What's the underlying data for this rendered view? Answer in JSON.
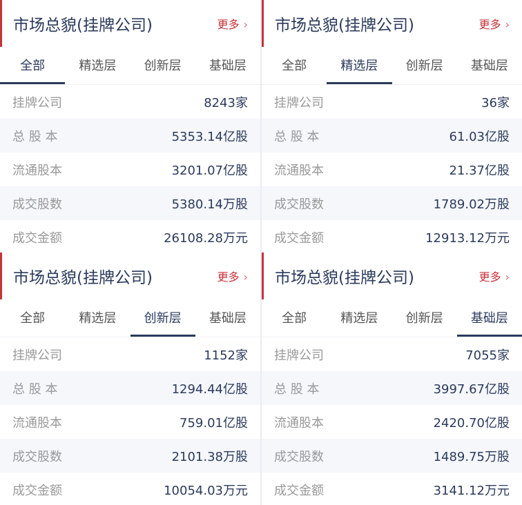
{
  "accent": "#c8323a",
  "panels": [
    {
      "title": "市场总貌(挂牌公司)",
      "more": "更多",
      "tabs": [
        "全部",
        "精选层",
        "创新层",
        "基础层"
      ],
      "active": 0,
      "rows": [
        [
          "挂牌公司",
          "8243家"
        ],
        [
          "总 股 本",
          "5353.14亿股"
        ],
        [
          "流通股本",
          "3201.07亿股"
        ],
        [
          "成交股数",
          "5380.14万股"
        ],
        [
          "成交金额",
          "26108.28万元"
        ]
      ]
    },
    {
      "title": "市场总貌(挂牌公司)",
      "more": "更多",
      "tabs": [
        "全部",
        "精选层",
        "创新层",
        "基础层"
      ],
      "active": 1,
      "rows": [
        [
          "挂牌公司",
          "36家"
        ],
        [
          "总 股 本",
          "61.03亿股"
        ],
        [
          "流通股本",
          "21.37亿股"
        ],
        [
          "成交股数",
          "1789.02万股"
        ],
        [
          "成交金额",
          "12913.12万元"
        ]
      ]
    },
    {
      "title": "市场总貌(挂牌公司)",
      "more": "更多",
      "tabs": [
        "全部",
        "精选层",
        "创新层",
        "基础层"
      ],
      "active": 2,
      "rows": [
        [
          "挂牌公司",
          "1152家"
        ],
        [
          "总 股 本",
          "1294.44亿股"
        ],
        [
          "流通股本",
          "759.01亿股"
        ],
        [
          "成交股数",
          "2101.38万股"
        ],
        [
          "成交金额",
          "10054.03万元"
        ]
      ]
    },
    {
      "title": "市场总貌(挂牌公司)",
      "more": "更多",
      "tabs": [
        "全部",
        "精选层",
        "创新层",
        "基础层"
      ],
      "active": 3,
      "rows": [
        [
          "挂牌公司",
          "7055家"
        ],
        [
          "总 股 本",
          "3997.67亿股"
        ],
        [
          "流通股本",
          "2420.70亿股"
        ],
        [
          "成交股数",
          "1489.75万股"
        ],
        [
          "成交金额",
          "3141.12万元"
        ]
      ]
    }
  ]
}
